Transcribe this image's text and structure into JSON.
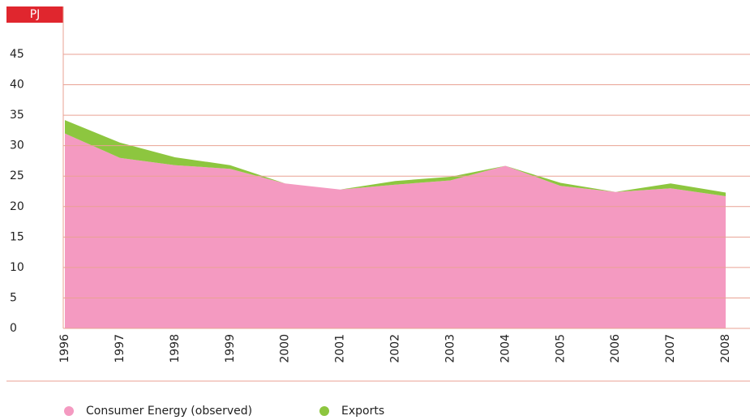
{
  "chart_data": {
    "type": "area",
    "stacked": true,
    "y_label": "PJ",
    "categories": [
      "1996",
      "1997",
      "1998",
      "1999",
      "2000",
      "2001",
      "2002",
      "2003",
      "2004",
      "2005",
      "2006",
      "2007",
      "2008"
    ],
    "series": [
      {
        "name": "Consumer Energy (observed)",
        "color": "#f49ac1",
        "values": [
          32,
          28,
          26.8,
          26.2,
          23.8,
          22.8,
          23.6,
          24.3,
          26.7,
          23.4,
          22.4,
          23,
          21.7
        ]
      },
      {
        "name": "Exports",
        "color": "#8dc63f",
        "values": [
          2.2,
          2.5,
          1.3,
          0.6,
          0,
          0,
          0.6,
          0.6,
          0,
          0.5,
          0,
          0.8,
          0.6
        ]
      }
    ],
    "ylim": [
      0,
      45
    ],
    "yticks": [
      0,
      5,
      10,
      15,
      20,
      25,
      30,
      35,
      40,
      45
    ],
    "grid": true
  }
}
